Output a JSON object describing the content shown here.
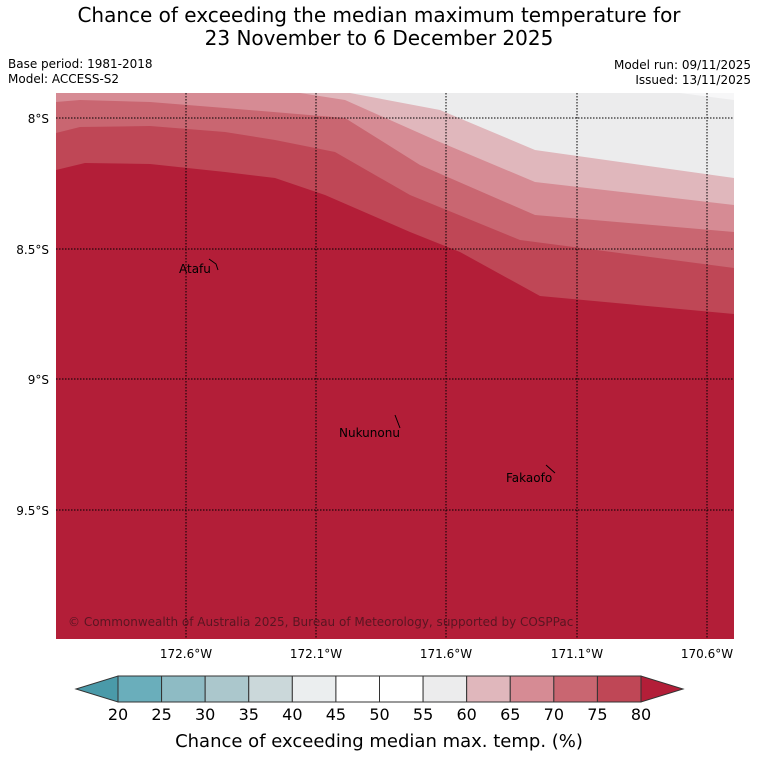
{
  "title": {
    "line1": "Chance of exceeding the median maximum temperature for",
    "line2": "23 November to 6 December 2025"
  },
  "meta": {
    "base_period": "Base period: 1981-2018",
    "model": "Model: ACCESS-S2",
    "model_run": "Model run: 09/11/2025",
    "issued": "Issued: 13/11/2025"
  },
  "map": {
    "lat_labels": [
      "8°S",
      "8.5°S",
      "9°S",
      "9.5°S"
    ],
    "lon_labels": [
      "172.6°W",
      "172.1°W",
      "171.6°W",
      "171.1°W",
      "170.6°W"
    ],
    "places": [
      {
        "name": "Atafu"
      },
      {
        "name": "Nukunonu"
      },
      {
        "name": "Fakaofo"
      }
    ],
    "copyright": "© Commonwealth of Australia 2025, Bureau of Meteorology, supported by COSPPac"
  },
  "colorbar": {
    "label": "Chance of exceeding median max. temp. (%)",
    "ticks": [
      "20",
      "25",
      "30",
      "35",
      "40",
      "45",
      "50",
      "55",
      "60",
      "65",
      "70",
      "75",
      "80"
    ],
    "colors": {
      "below": "#4a9aa9",
      "bins": [
        "#6aaebb",
        "#8ebbc4",
        "#abc7cc",
        "#cbd8da",
        "#ebeeef",
        "#ffffff",
        "#ffffff",
        "#ececed",
        "#e0b7bc",
        "#d68b94",
        "#c96671",
        "#bf4756"
      ],
      "above": "#b31e38"
    }
  }
}
